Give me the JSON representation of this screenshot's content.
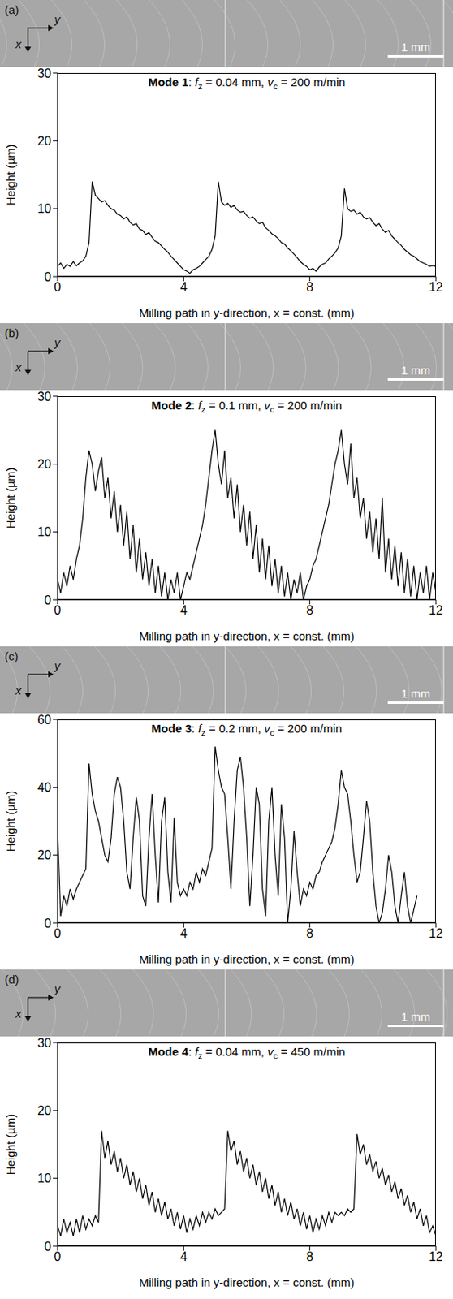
{
  "chart_data": [
    {
      "type": "line",
      "title": "Mode 1: fz = 0.04 mm, vc = 200 m/min",
      "annotations": [
        "(a)",
        "x",
        "y",
        "1 mm"
      ],
      "x_label": "Milling path in y-direction, x = const. (mm)",
      "y_label": "Height (µm)",
      "color": "#000000",
      "xlim": [
        0,
        12
      ],
      "xticks": [
        0,
        4,
        8,
        12
      ],
      "ylim": [
        0,
        30
      ],
      "yticks": [
        0,
        10,
        20,
        30
      ],
      "x": [
        0,
        0.1,
        0.2,
        0.3,
        0.4,
        0.5,
        0.6,
        0.7,
        0.8,
        0.9,
        1,
        1.1,
        1.2,
        1.3,
        1.4,
        1.5,
        1.6,
        1.7,
        1.8,
        1.9,
        2,
        2.1,
        2.2,
        2.3,
        2.4,
        2.5,
        2.6,
        2.7,
        2.8,
        2.9,
        3,
        3.1,
        3.2,
        3.3,
        3.4,
        3.5,
        3.6,
        3.7,
        3.8,
        3.9,
        4,
        4.1,
        4.2,
        4.3,
        4.4,
        4.5,
        4.6,
        4.7,
        4.8,
        4.9,
        5,
        5.1,
        5.2,
        5.3,
        5.4,
        5.5,
        5.6,
        5.7,
        5.8,
        5.9,
        6,
        6.1,
        6.2,
        6.3,
        6.4,
        6.5,
        6.6,
        6.7,
        6.8,
        6.9,
        7,
        7.1,
        7.2,
        7.3,
        7.4,
        7.5,
        7.6,
        7.7,
        7.8,
        7.9,
        8,
        8.1,
        8.2,
        8.3,
        8.4,
        8.5,
        8.6,
        8.7,
        8.8,
        8.9,
        9,
        9.1,
        9.2,
        9.3,
        9.4,
        9.5,
        9.6,
        9.7,
        9.8,
        9.9,
        10,
        10.1,
        10.2,
        10.3,
        10.4,
        10.5,
        10.6,
        10.7,
        10.8,
        10.9,
        11,
        11.1,
        11.2,
        11.3,
        11.4,
        11.5,
        11.6,
        11.7,
        11.8,
        11.9,
        12
      ],
      "values": [
        1.5,
        2,
        1.2,
        1.8,
        1.5,
        2.2,
        1.6,
        2,
        2.3,
        3,
        5,
        14,
        12,
        11.5,
        11,
        11.2,
        10.5,
        10,
        9.8,
        9.2,
        9,
        8.5,
        8.8,
        8,
        7.6,
        7.8,
        7,
        6.8,
        6.2,
        6.5,
        5.8,
        5.2,
        5,
        4.5,
        4,
        3.6,
        3,
        2.5,
        2,
        1.5,
        1,
        0.8,
        0.5,
        1,
        1.2,
        1.5,
        2,
        2.5,
        3,
        4,
        6,
        14,
        11,
        10.5,
        10.8,
        10.2,
        10.5,
        9.8,
        9.5,
        9.6,
        9,
        8.6,
        8.8,
        8.2,
        7.8,
        8,
        7.2,
        6.8,
        6.3,
        6,
        5.6,
        5,
        4.8,
        4.2,
        3.8,
        3.3,
        2.8,
        2.2,
        1.8,
        1.5,
        1,
        1.2,
        0.8,
        1.4,
        1.8,
        2,
        2.6,
        3,
        3.5,
        4.2,
        6,
        13,
        10,
        9.6,
        9.8,
        9.2,
        9.5,
        8.8,
        8.5,
        8.7,
        8,
        7.5,
        7.8,
        7,
        6.5,
        6.8,
        6,
        5.5,
        5,
        4.6,
        4,
        3.6,
        3.2,
        3,
        2.6,
        2.2,
        2,
        1.8,
        1.5,
        1.6,
        1.5
      ]
    },
    {
      "type": "line",
      "title": "Mode 2: fz = 0.1 mm, vc = 200 m/min",
      "annotations": [
        "(b)",
        "x",
        "y",
        "1 mm"
      ],
      "x_label": "Milling path in y-direction, x = const. (mm)",
      "y_label": "Height (µm)",
      "color": "#000000",
      "xlim": [
        0,
        12
      ],
      "xticks": [
        0,
        4,
        8,
        12
      ],
      "ylim": [
        0,
        30
      ],
      "yticks": [
        0,
        10,
        20,
        30
      ],
      "x": [
        0,
        0.1,
        0.2,
        0.3,
        0.4,
        0.5,
        0.6,
        0.7,
        0.8,
        0.9,
        1,
        1.1,
        1.2,
        1.3,
        1.4,
        1.5,
        1.6,
        1.7,
        1.8,
        1.9,
        2,
        2.1,
        2.2,
        2.3,
        2.4,
        2.5,
        2.6,
        2.7,
        2.8,
        2.9,
        3,
        3.1,
        3.2,
        3.3,
        3.4,
        3.5,
        3.6,
        3.7,
        3.8,
        3.9,
        4,
        4.1,
        4.2,
        4.3,
        4.4,
        4.5,
        4.6,
        4.7,
        4.8,
        4.9,
        5,
        5.1,
        5.2,
        5.3,
        5.4,
        5.5,
        5.6,
        5.7,
        5.8,
        5.9,
        6,
        6.1,
        6.2,
        6.3,
        6.4,
        6.5,
        6.6,
        6.7,
        6.8,
        6.9,
        7,
        7.1,
        7.2,
        7.3,
        7.4,
        7.5,
        7.6,
        7.7,
        7.8,
        7.9,
        8,
        8.1,
        8.2,
        8.3,
        8.4,
        8.5,
        8.6,
        8.7,
        8.8,
        8.9,
        9,
        9.1,
        9.2,
        9.3,
        9.4,
        9.5,
        9.6,
        9.7,
        9.8,
        9.9,
        10,
        10.1,
        10.2,
        10.3,
        10.4,
        10.5,
        10.6,
        10.7,
        10.8,
        10.9,
        11,
        11.1,
        11.2,
        11.3,
        11.4,
        11.5,
        11.6,
        11.7,
        11.8,
        11.9,
        12
      ],
      "values": [
        3,
        1,
        4,
        2,
        5,
        3,
        6,
        8,
        12,
        18,
        22,
        20,
        16,
        19,
        21,
        15,
        18,
        12,
        16,
        10,
        14,
        8,
        13,
        6,
        11,
        4,
        9,
        3,
        7,
        2,
        6,
        1,
        5,
        0.5,
        4,
        0,
        3,
        1,
        4,
        0,
        2,
        4,
        3,
        5,
        7,
        9,
        11,
        14,
        18,
        22,
        25,
        20,
        17,
        22,
        15,
        18,
        12,
        17,
        10,
        14,
        8,
        13,
        6,
        11,
        4,
        9,
        3,
        8,
        2,
        6,
        1,
        5,
        0.5,
        4,
        0,
        3,
        1,
        4,
        0,
        2,
        3,
        5,
        6,
        8,
        10,
        12,
        14,
        17,
        20,
        22,
        25,
        20,
        17,
        23,
        15,
        18,
        12,
        15,
        9,
        13,
        7,
        12,
        6,
        15,
        4,
        9,
        3,
        8,
        2,
        7,
        1,
        6,
        0.5,
        5,
        0,
        4,
        1,
        5,
        0,
        4,
        1
      ]
    },
    {
      "type": "line",
      "title": "Mode 3: fz = 0.2 mm, vc = 200 m/min",
      "annotations": [
        "(c)",
        "x",
        "y",
        "1 mm"
      ],
      "x_label": "Milling path in y-direction, x = const. (mm)",
      "y_label": "Height (µm)",
      "color": "#000000",
      "xlim": [
        0,
        12
      ],
      "xticks": [
        0,
        4,
        8,
        12
      ],
      "ylim": [
        0,
        60
      ],
      "yticks": [
        0,
        20,
        40,
        60
      ],
      "x": [
        0,
        0.1,
        0.2,
        0.3,
        0.4,
        0.5,
        0.6,
        0.7,
        0.8,
        0.9,
        1,
        1.1,
        1.2,
        1.3,
        1.4,
        1.5,
        1.6,
        1.7,
        1.8,
        1.9,
        2,
        2.1,
        2.2,
        2.3,
        2.4,
        2.5,
        2.6,
        2.7,
        2.8,
        2.9,
        3,
        3.1,
        3.2,
        3.3,
        3.4,
        3.5,
        3.6,
        3.7,
        3.8,
        3.9,
        4,
        4.1,
        4.2,
        4.3,
        4.4,
        4.5,
        4.6,
        4.7,
        4.8,
        4.9,
        5,
        5.1,
        5.2,
        5.3,
        5.4,
        5.5,
        5.6,
        5.7,
        5.8,
        5.9,
        6,
        6.1,
        6.2,
        6.3,
        6.4,
        6.5,
        6.6,
        6.7,
        6.8,
        6.9,
        7,
        7.1,
        7.2,
        7.3,
        7.4,
        7.5,
        7.6,
        7.7,
        7.8,
        7.9,
        8,
        8.1,
        8.2,
        8.3,
        8.4,
        8.5,
        8.6,
        8.7,
        8.8,
        8.9,
        9,
        9.1,
        9.2,
        9.3,
        9.4,
        9.5,
        9.6,
        9.7,
        9.8,
        9.9,
        10,
        10.1,
        10.2,
        10.3,
        10.4,
        10.5,
        10.6,
        10.7,
        10.8,
        10.9,
        11,
        11.1,
        11.2,
        11.3,
        11.4,
        11.5,
        11.6,
        11.7,
        11.8,
        11.9,
        12
      ],
      "values": [
        28,
        2,
        8,
        5,
        10,
        7,
        10,
        12,
        14,
        16,
        47,
        38,
        33,
        30,
        25,
        20,
        18,
        25,
        38,
        43,
        40,
        30,
        15,
        10,
        25,
        37,
        30,
        8,
        5,
        25,
        38,
        20,
        6,
        30,
        37,
        15,
        6,
        31,
        12,
        8,
        10,
        8,
        12,
        10,
        15,
        12,
        16,
        14,
        18,
        22,
        52,
        45,
        40,
        38,
        25,
        10,
        30,
        45,
        49,
        40,
        25,
        5,
        20,
        40,
        35,
        10,
        2,
        30,
        40,
        20,
        8,
        35,
        25,
        0,
        10,
        27,
        15,
        5,
        10,
        8,
        12,
        10,
        14,
        15,
        18,
        20,
        22,
        24,
        28,
        35,
        45,
        40,
        38,
        30,
        20,
        12,
        15,
        25,
        36,
        30,
        15,
        5,
        0,
        3,
        10,
        20,
        15,
        5,
        0,
        8,
        15,
        5,
        0,
        4,
        8,
        null,
        null,
        null,
        null,
        null,
        null
      ]
    },
    {
      "type": "line",
      "title": "Mode 4: fz = 0.04 mm, vc = 450 m/min",
      "annotations": [
        "(d)",
        "x",
        "y",
        "1 mm"
      ],
      "x_label": "Milling path in y-direction, x = const. (mm)",
      "y_label": "Height (µm)",
      "color": "#000000",
      "xlim": [
        0,
        12
      ],
      "xticks": [
        0,
        4,
        8,
        12
      ],
      "ylim": [
        0,
        30
      ],
      "yticks": [
        0,
        10,
        20,
        30
      ],
      "x": [
        0,
        0.1,
        0.2,
        0.3,
        0.4,
        0.5,
        0.6,
        0.7,
        0.8,
        0.9,
        1,
        1.1,
        1.2,
        1.3,
        1.4,
        1.5,
        1.6,
        1.7,
        1.8,
        1.9,
        2,
        2.1,
        2.2,
        2.3,
        2.4,
        2.5,
        2.6,
        2.7,
        2.8,
        2.9,
        3,
        3.1,
        3.2,
        3.3,
        3.4,
        3.5,
        3.6,
        3.7,
        3.8,
        3.9,
        4,
        4.1,
        4.2,
        4.3,
        4.4,
        4.5,
        4.6,
        4.7,
        4.8,
        4.9,
        5,
        5.1,
        5.2,
        5.3,
        5.4,
        5.5,
        5.6,
        5.7,
        5.8,
        5.9,
        6,
        6.1,
        6.2,
        6.3,
        6.4,
        6.5,
        6.6,
        6.7,
        6.8,
        6.9,
        7,
        7.1,
        7.2,
        7.3,
        7.4,
        7.5,
        7.6,
        7.7,
        7.8,
        7.9,
        8,
        8.1,
        8.2,
        8.3,
        8.4,
        8.5,
        8.6,
        8.7,
        8.8,
        8.9,
        9,
        9.1,
        9.2,
        9.3,
        9.4,
        9.5,
        9.6,
        9.7,
        9.8,
        9.9,
        10,
        10.1,
        10.2,
        10.3,
        10.4,
        10.5,
        10.6,
        10.7,
        10.8,
        10.9,
        11,
        11.1,
        11.2,
        11.3,
        11.4,
        11.5,
        11.6,
        11.7,
        11.8,
        11.9,
        12
      ],
      "values": [
        3,
        1.5,
        4,
        2,
        3.5,
        1.5,
        4,
        2,
        4.5,
        2.5,
        4,
        3,
        4.5,
        3.5,
        17,
        13,
        15.5,
        12,
        14,
        11,
        13,
        10,
        12,
        9,
        11,
        8,
        10,
        7,
        9,
        6,
        8,
        5,
        7,
        4.5,
        6.5,
        4,
        5.5,
        3,
        5,
        2.5,
        4.5,
        2,
        4,
        2.5,
        4.5,
        3,
        5,
        3.5,
        5,
        4,
        5.5,
        4.5,
        5,
        5.5,
        17,
        14,
        15.5,
        12,
        14,
        11,
        13,
        10,
        12,
        9,
        11,
        8,
        10,
        7,
        9,
        6,
        8,
        5,
        7,
        4.5,
        6.5,
        4,
        5.5,
        3,
        5,
        2.5,
        4.5,
        2,
        4,
        2.5,
        4.5,
        3,
        5,
        3.5,
        5,
        4.5,
        5,
        4.5,
        5.5,
        5,
        5.5,
        16.5,
        13.5,
        15,
        12,
        13.5,
        11,
        12.5,
        10,
        11.5,
        9,
        10.5,
        8,
        9.5,
        7,
        8.5,
        6,
        7.5,
        5,
        6.5,
        4,
        5.5,
        3,
        4.5,
        2,
        3,
        1.5
      ]
    }
  ]
}
